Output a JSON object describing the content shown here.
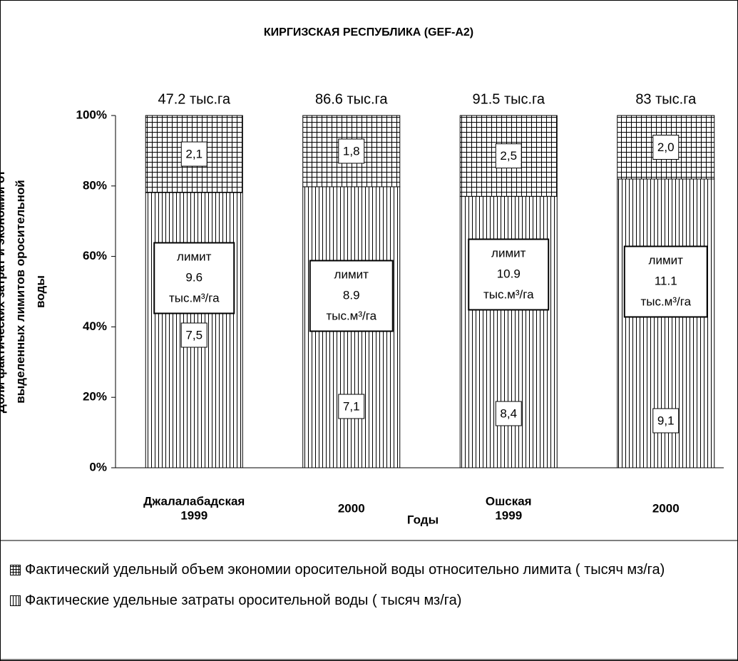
{
  "chart_data": {
    "type": "bar",
    "stacking": "percent",
    "title": "КИРГИЗСКАЯ РЕСПУБЛИКА  (GEF-A2)",
    "x_label": "Годы",
    "y_label": [
      "Доли фактических затрат и экономии  от",
      "выделенных лимитов оросительной",
      "воды"
    ],
    "categories": [
      [
        "Джалалабадская",
        "1999"
      ],
      [
        "2000"
      ],
      [
        "Ошская",
        "1999"
      ],
      [
        "2000"
      ]
    ],
    "series": [
      {
        "name": "Фактические удельные затраты оросительной воды ( тысяч мз/га)",
        "pattern": "vertical",
        "color": "#000000",
        "values": [
          7.5,
          7.1,
          8.4,
          9.1
        ],
        "value_labels": [
          "7,5",
          "7,1",
          "8,4",
          "9,1"
        ]
      },
      {
        "name": "Фактический удельный объем экономии оросительной воды относительно лимита ( тысяч мз/га)",
        "pattern": "grid",
        "color": "#000000",
        "values": [
          2.1,
          1.8,
          2.5,
          2.0
        ],
        "value_labels": [
          "2,1",
          "1,8",
          "2,5",
          "2,0"
        ]
      }
    ],
    "area_labels": [
      "47.2 тыс.га",
      "86.6 тыс.га",
      "91.5 тыс.га",
      "83 тыс.га"
    ],
    "limit_labels": [
      [
        "лимит",
        "9.6",
        "тыс.м³/га"
      ],
      [
        "лимит",
        "8.9",
        "тыс.м³/га"
      ],
      [
        "лимит",
        "10.9",
        "тыс.м³/га"
      ],
      [
        "лимит",
        "11.1",
        "тыс.м³/га"
      ]
    ],
    "ylim": [
      0,
      100
    ],
    "yticks": [
      {
        "value": 0,
        "label": "0%"
      },
      {
        "value": 20,
        "label": "20%"
      },
      {
        "value": 40,
        "label": "40%"
      },
      {
        "value": 60,
        "label": "60%"
      },
      {
        "value": 80,
        "label": "80%"
      },
      {
        "value": 100,
        "label": "100%"
      }
    ],
    "legend": "bottom"
  }
}
